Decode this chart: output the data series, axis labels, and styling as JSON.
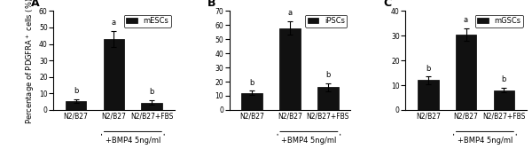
{
  "panels": [
    {
      "label": "A",
      "legend": "mESCs",
      "categories": [
        "N2/B27",
        "N2/B27",
        "N2/B27+FBS"
      ],
      "values": [
        5.5,
        43.0,
        4.5
      ],
      "errors": [
        1.0,
        5.0,
        1.5
      ],
      "sig_labels": [
        "b",
        "a",
        "b"
      ],
      "ylim": [
        0,
        60
      ],
      "yticks": [
        0,
        10,
        20,
        30,
        40,
        50,
        60
      ]
    },
    {
      "label": "B",
      "legend": "iPSCs",
      "categories": [
        "N2/B27",
        "N2/B27",
        "N2/B27+FBS"
      ],
      "values": [
        12.0,
        58.0,
        16.0
      ],
      "errors": [
        1.5,
        5.0,
        3.0
      ],
      "sig_labels": [
        "b",
        "a",
        "b"
      ],
      "ylim": [
        0,
        70
      ],
      "yticks": [
        0,
        10,
        20,
        30,
        40,
        50,
        60,
        70
      ]
    },
    {
      "label": "C",
      "legend": "mGSCs",
      "categories": [
        "N2/B27",
        "N2/B27",
        "N2/B27+FBS"
      ],
      "values": [
        12.0,
        30.5,
        8.0
      ],
      "errors": [
        1.5,
        2.5,
        1.0
      ],
      "sig_labels": [
        "b",
        "a",
        "b"
      ],
      "ylim": [
        0,
        40
      ],
      "yticks": [
        0,
        10,
        20,
        30,
        40
      ]
    }
  ],
  "bar_color": "#111111",
  "bar_width": 0.55,
  "bar_edge_color": "#000000",
  "ylabel": "Percentage of PDGFRA$^+$ cells (%)",
  "xlabel_bmp4": "+BMP4 5ng/ml",
  "capsize": 2,
  "sig_fontsize": 6,
  "tick_fontsize": 5.5,
  "label_fontsize": 6,
  "legend_fontsize": 6,
  "panel_label_fontsize": 9,
  "background_color": "#ffffff"
}
